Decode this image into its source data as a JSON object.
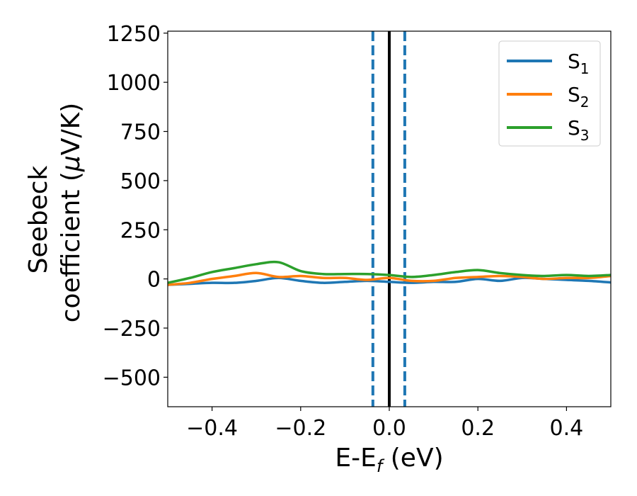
{
  "chart_data": {
    "type": "line",
    "xlabel": "E-E",
    "xlabel_sub": "f",
    "xlabel_unit": " (eV)",
    "ylabel_line1": "Seebeck",
    "ylabel_line2": "coefficient  (",
    "ylabel_mu": "μ",
    "ylabel_unit": "V/K)",
    "xlim": [
      -0.5,
      0.5
    ],
    "ylim": [
      -650,
      1260
    ],
    "xticks": [
      -0.4,
      -0.2,
      0.0,
      0.2,
      0.4
    ],
    "xtick_labels": [
      "−0.4",
      "−0.2",
      "0.0",
      "0.2",
      "0.4"
    ],
    "yticks": [
      -500,
      -250,
      0,
      250,
      500,
      750,
      1000,
      1250
    ],
    "ytick_labels": [
      "−500",
      "−250",
      "0",
      "250",
      "500",
      "750",
      "1000",
      "1250"
    ],
    "grid": false,
    "legend_position": "top-right",
    "vlines": [
      {
        "x": -0.037,
        "style": "dashed",
        "color": "#1f77b4"
      },
      {
        "x": 0.0,
        "style": "solid",
        "color": "#000000"
      },
      {
        "x": 0.035,
        "style": "dashed",
        "color": "#1f77b4"
      }
    ],
    "x": [
      -0.5,
      -0.45,
      -0.4,
      -0.35,
      -0.3,
      -0.25,
      -0.2,
      -0.15,
      -0.1,
      -0.05,
      0.0,
      0.05,
      0.1,
      0.15,
      0.2,
      0.25,
      0.3,
      0.35,
      0.4,
      0.45,
      0.5
    ],
    "series": [
      {
        "name": "S",
        "sub": "1",
        "color": "#1f77b4",
        "values": [
          -30,
          -25,
          -20,
          -20,
          -10,
          5,
          -10,
          -20,
          -15,
          -10,
          -15,
          -20,
          -15,
          -15,
          0,
          -10,
          5,
          0,
          -5,
          -10,
          -18
        ]
      },
      {
        "name": "S",
        "sub": "2",
        "color": "#ff7f0e",
        "values": [
          -30,
          -20,
          0,
          15,
          30,
          10,
          15,
          5,
          5,
          -5,
          5,
          -10,
          -10,
          5,
          10,
          15,
          10,
          0,
          5,
          5,
          15
        ]
      },
      {
        "name": "S",
        "sub": "3",
        "color": "#2ca02c",
        "values": [
          -20,
          5,
          35,
          55,
          75,
          85,
          40,
          25,
          25,
          25,
          20,
          10,
          20,
          35,
          45,
          30,
          20,
          15,
          20,
          15,
          20
        ]
      }
    ]
  }
}
